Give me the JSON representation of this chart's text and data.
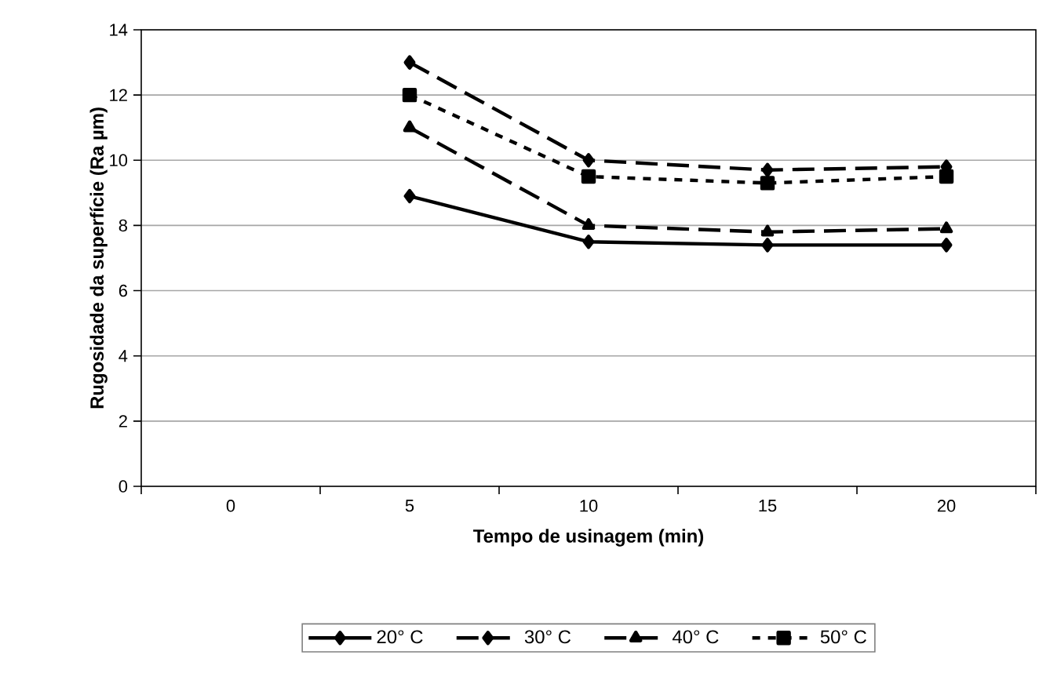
{
  "chart_data": {
    "type": "line",
    "xlabel": "Tempo de usinagem (min)",
    "ylabel": "Rugosidade da superfície (Ra µm)",
    "categories": [
      "0",
      "5",
      "10",
      "15",
      "20"
    ],
    "series": [
      {
        "name": "20° C",
        "color": "#000000",
        "marker": "diamond",
        "line_style": "solid",
        "values": [
          null,
          8.9,
          7.5,
          7.4,
          7.4
        ]
      },
      {
        "name": "30° C",
        "color": "#000000",
        "marker": "diamond",
        "line_style": "dashed",
        "values": [
          null,
          13,
          10,
          9.7,
          9.8
        ]
      },
      {
        "name": "40° C",
        "color": "#000000",
        "marker": "triangle",
        "line_style": "dashed",
        "values": [
          null,
          11,
          8,
          7.8,
          7.9
        ]
      },
      {
        "name": "50° C",
        "color": "#000000",
        "marker": "square",
        "line_style": "dotted",
        "values": [
          null,
          12,
          9.5,
          9.3,
          9.5
        ]
      }
    ],
    "ylim": [
      0,
      14
    ],
    "yticks": [
      0,
      2,
      4,
      6,
      8,
      10,
      12,
      14
    ],
    "grid": "y",
    "legend": "bottom"
  }
}
